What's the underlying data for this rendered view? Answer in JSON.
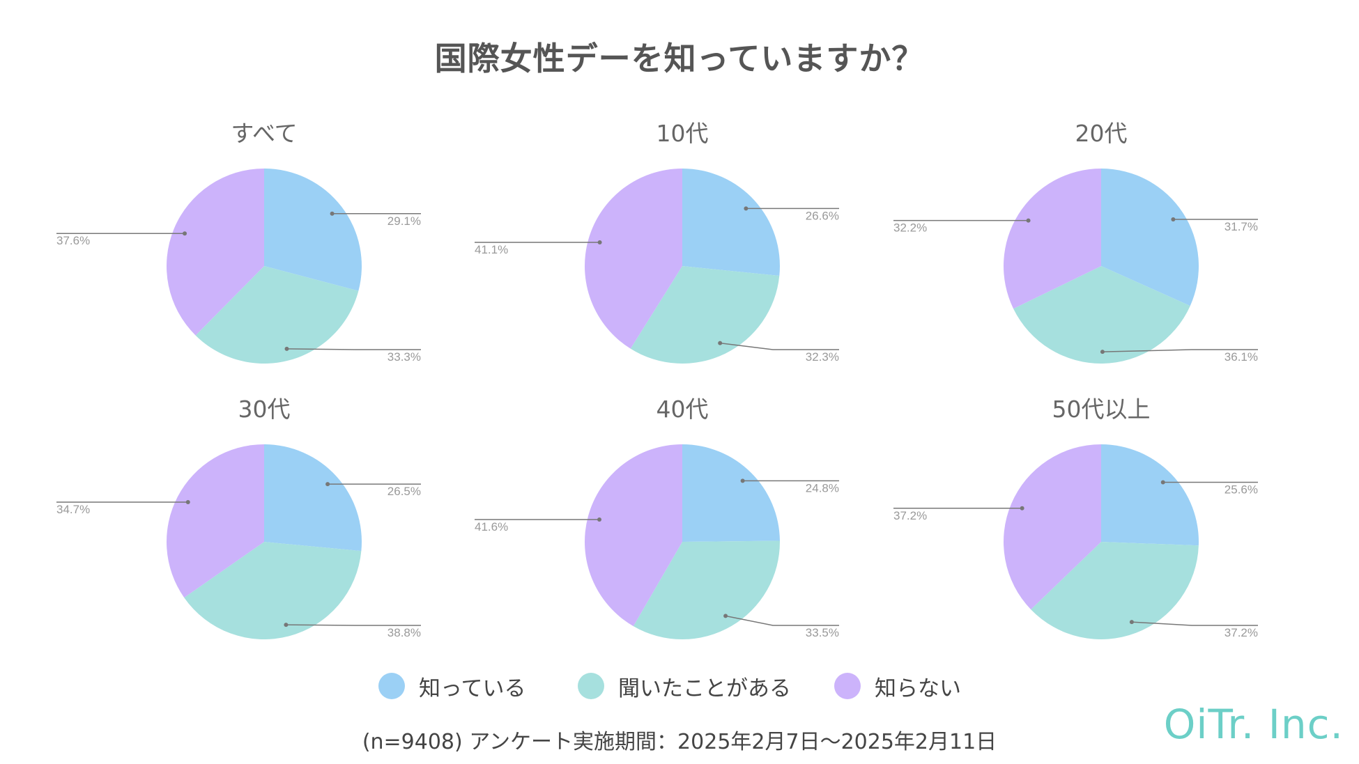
{
  "title": "国際女性デーを知っていますか？",
  "colors": {
    "know": "#9bd0f5",
    "heard": "#a6e0de",
    "dont_know": "#ccb3fb",
    "leader_line": "#777777",
    "label_text": "#999999"
  },
  "legend": [
    {
      "label": "知っている",
      "color_key": "know"
    },
    {
      "label": "聞いたことがある",
      "color_key": "heard"
    },
    {
      "label": "知らない",
      "color_key": "dont_know"
    }
  ],
  "footnote": "(n=9408)  アンケート実施期間：2025年2月7日～2025年2月11日",
  "logo": "OiTr. Inc.",
  "chart_data": [
    {
      "type": "pie",
      "title": "すべて",
      "categories": [
        "知っている",
        "聞いたことがある",
        "知らない"
      ],
      "values": [
        29.1,
        33.3,
        37.6
      ],
      "labels": [
        "29.1%",
        "33.3%",
        "37.6%"
      ]
    },
    {
      "type": "pie",
      "title": "10代",
      "categories": [
        "知っている",
        "聞いたことがある",
        "知らない"
      ],
      "values": [
        26.6,
        32.3,
        41.1
      ],
      "labels": [
        "26.6%",
        "32.3%",
        "41.1%"
      ]
    },
    {
      "type": "pie",
      "title": "20代",
      "categories": [
        "知っている",
        "聞いたことがある",
        "知らない"
      ],
      "values": [
        31.7,
        36.1,
        32.2
      ],
      "labels": [
        "31.7%",
        "36.1%",
        "32.2%"
      ]
    },
    {
      "type": "pie",
      "title": "30代",
      "categories": [
        "知っている",
        "聞いたことがある",
        "知らない"
      ],
      "values": [
        26.5,
        38.8,
        34.7
      ],
      "labels": [
        "26.5%",
        "38.8%",
        "34.7%"
      ]
    },
    {
      "type": "pie",
      "title": "40代",
      "categories": [
        "知っている",
        "聞いたことがある",
        "知らない"
      ],
      "values": [
        24.8,
        33.5,
        41.6
      ],
      "labels": [
        "24.8%",
        "33.5%",
        "41.6%"
      ]
    },
    {
      "type": "pie",
      "title": "50代以上",
      "categories": [
        "知っている",
        "聞いたことがある",
        "知らない"
      ],
      "values": [
        25.6,
        37.2,
        37.2
      ],
      "labels": [
        "25.6%",
        "37.2%",
        "37.2%"
      ]
    }
  ]
}
